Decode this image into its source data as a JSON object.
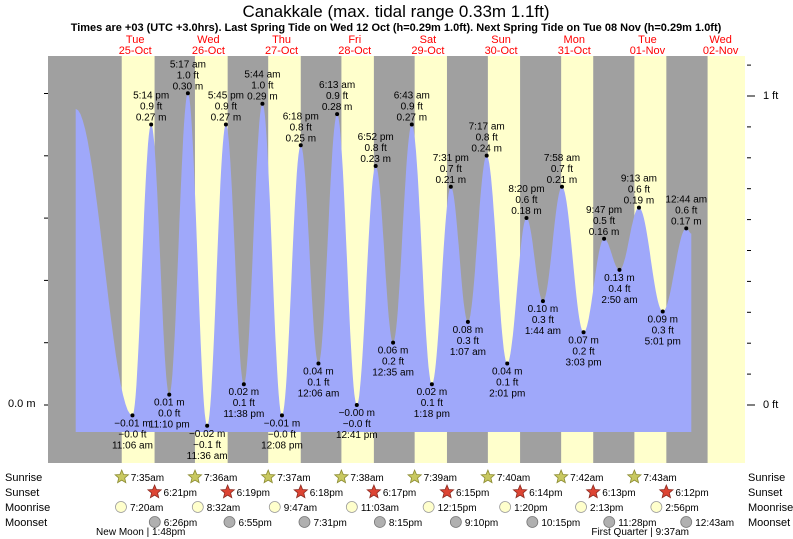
{
  "title": "Canakkale (max. tidal range 0.33m 1.1ft)",
  "subtitle": "Times are +03 (UTC +3.0hrs). Last Spring Tide on Wed 12 Oct (h=0.29m 1.0ft). Next Spring Tide on Tue 08 Nov (h=0.29m 1.0ft)",
  "colors": {
    "tide": "#9fa8fa",
    "day": "#ffffcc",
    "night": "#a0a0a0",
    "dayName": "#ff0000",
    "sun": "#b8b858",
    "sunset": "#dd4433",
    "moonrise": "#ffffcc",
    "moonset": "#b0b0b0"
  },
  "chart_data": {
    "type": "area",
    "title": "Canakkale (max. tidal range 0.33m 1.1ft)",
    "y_axis_left": {
      "tick_label": "0.0 m",
      "value_m": 0.0
    },
    "y_axis_right": {
      "tick_labels": [
        "1 ft",
        "0 ft"
      ],
      "values_ft": [
        1,
        0
      ]
    },
    "ylim_m": [
      -0.045,
      0.333
    ],
    "days": [
      {
        "name": "Tue",
        "date": "25-Oct"
      },
      {
        "name": "Wed",
        "date": "26-Oct"
      },
      {
        "name": "Thu",
        "date": "27-Oct"
      },
      {
        "name": "Fri",
        "date": "28-Oct"
      },
      {
        "name": "Sat",
        "date": "29-Oct"
      },
      {
        "name": "Sun",
        "date": "30-Oct"
      },
      {
        "name": "Mon",
        "date": "31-Oct"
      },
      {
        "name": "Tue",
        "date": "01-Nov"
      },
      {
        "name": "Wed",
        "date": "02-Nov"
      }
    ],
    "daylight_hours": [
      [
        7.58,
        18.35
      ],
      [
        31.6,
        42.32
      ],
      [
        55.62,
        66.3
      ],
      [
        79.63,
        90.28
      ],
      [
        103.65,
        114.25
      ],
      [
        127.67,
        138.23
      ],
      [
        151.7,
        162.22
      ],
      [
        175.72,
        186.2
      ],
      [
        199.73,
        212.0
      ]
    ],
    "tides": [
      {
        "t": -7.5,
        "h": 0.285,
        "label": false
      },
      {
        "t": 11.1,
        "h": -0.01,
        "m": "−0.01 m",
        "ft": "−0.0 ft",
        "time": "11:06 am",
        "type": "low"
      },
      {
        "t": 17.23,
        "h": 0.27,
        "m": "0.27 m",
        "ft": "0.9 ft",
        "time": "5:14 pm",
        "type": "high"
      },
      {
        "t": 23.17,
        "h": 0.01,
        "m": "0.01 m",
        "ft": "0.0 ft",
        "time": "11:10 pm",
        "type": "low"
      },
      {
        "t": 29.28,
        "h": 0.3,
        "m": "0.30 m",
        "ft": "1.0 ft",
        "time": "5:17 am",
        "type": "high"
      },
      {
        "t": 35.6,
        "h": -0.02,
        "m": "−0.02 m",
        "ft": "−0.1 ft",
        "time": "11:36 am",
        "type": "low"
      },
      {
        "t": 41.75,
        "h": 0.27,
        "m": "0.27 m",
        "ft": "0.9 ft",
        "time": "5:45 pm",
        "type": "high"
      },
      {
        "t": 47.63,
        "h": 0.02,
        "m": "0.02 m",
        "ft": "0.1 ft",
        "time": "11:38 pm",
        "type": "low"
      },
      {
        "t": 53.73,
        "h": 0.29,
        "m": "0.29 m",
        "ft": "1.0 ft",
        "time": "5:44 am",
        "type": "high"
      },
      {
        "t": 60.13,
        "h": -0.01,
        "m": "−0.01 m",
        "ft": "−0.0 ft",
        "time": "12:08 pm",
        "type": "low"
      },
      {
        "t": 66.3,
        "h": 0.25,
        "m": "0.25 m",
        "ft": "0.8 ft",
        "time": "6:18 pm",
        "type": "high"
      },
      {
        "t": 72.1,
        "h": 0.04,
        "m": "0.04 m",
        "ft": "0.1 ft",
        "time": "12:06 am",
        "type": "low"
      },
      {
        "t": 78.22,
        "h": 0.28,
        "m": "0.28 m",
        "ft": "0.9 ft",
        "time": "6:13 am",
        "type": "high"
      },
      {
        "t": 84.68,
        "h": -0.0,
        "m": "−0.00 m",
        "ft": "−0.0 ft",
        "time": "12:41 pm",
        "type": "low"
      },
      {
        "t": 90.87,
        "h": 0.23,
        "m": "0.23 m",
        "ft": "0.8 ft",
        "time": "6:52 pm",
        "type": "high"
      },
      {
        "t": 96.58,
        "h": 0.06,
        "m": "0.06 m",
        "ft": "0.2 ft",
        "time": "12:35 am",
        "type": "low"
      },
      {
        "t": 102.72,
        "h": 0.27,
        "m": "0.27 m",
        "ft": "0.9 ft",
        "time": "6:43 am",
        "type": "high"
      },
      {
        "t": 109.3,
        "h": 0.02,
        "m": "0.02 m",
        "ft": "0.1 ft",
        "time": "1:18 pm",
        "type": "low"
      },
      {
        "t": 115.52,
        "h": 0.21,
        "m": "0.21 m",
        "ft": "0.7 ft",
        "time": "7:31 pm",
        "type": "high"
      },
      {
        "t": 121.12,
        "h": 0.08,
        "m": "0.08 m",
        "ft": "0.3 ft",
        "time": "1:07 am",
        "type": "low"
      },
      {
        "t": 127.28,
        "h": 0.24,
        "m": "0.24 m",
        "ft": "0.8 ft",
        "time": "7:17 am",
        "type": "high"
      },
      {
        "t": 134.02,
        "h": 0.04,
        "m": "0.04 m",
        "ft": "0.1 ft",
        "time": "2:01 pm",
        "type": "low"
      },
      {
        "t": 140.33,
        "h": 0.18,
        "m": "0.18 m",
        "ft": "0.6 ft",
        "time": "8:20 pm",
        "type": "high"
      },
      {
        "t": 145.73,
        "h": 0.1,
        "m": "0.10 m",
        "ft": "0.3 ft",
        "time": "1:44 am",
        "type": "low"
      },
      {
        "t": 151.97,
        "h": 0.21,
        "m": "0.21 m",
        "ft": "0.7 ft",
        "time": "7:58 am",
        "type": "high"
      },
      {
        "t": 159.05,
        "h": 0.07,
        "m": "0.07 m",
        "ft": "0.2 ft",
        "time": "3:03 pm",
        "type": "low"
      },
      {
        "t": 165.78,
        "h": 0.16,
        "m": "0.16 m",
        "ft": "0.5 ft",
        "time": "9:47 pm",
        "type": "high"
      },
      {
        "t": 170.83,
        "h": 0.13,
        "m": "0.13 m",
        "ft": "0.4 ft",
        "time": "2:50 am",
        "type": "low"
      },
      {
        "t": 177.22,
        "h": 0.19,
        "m": "0.19 m",
        "ft": "0.6 ft",
        "time": "9:13 am",
        "type": "high"
      },
      {
        "t": 185.02,
        "h": 0.09,
        "m": "0.09 m",
        "ft": "0.3 ft",
        "time": "5:01 pm",
        "type": "low"
      },
      {
        "t": 192.73,
        "h": 0.17,
        "m": "0.17 m",
        "ft": "0.6 ft",
        "time": "12:44 am",
        "type": "high"
      },
      {
        "t": 194.4,
        "h": 0.165,
        "label": false
      }
    ]
  },
  "rows": [
    {
      "label": "Sunrise",
      "kind": "sunrise",
      "events": [
        {
          "t": 7.58,
          "text": "7:35am"
        },
        {
          "t": 31.6,
          "text": "7:36am"
        },
        {
          "t": 55.62,
          "text": "7:37am"
        },
        {
          "t": 79.63,
          "text": "7:38am"
        },
        {
          "t": 103.65,
          "text": "7:39am"
        },
        {
          "t": 127.67,
          "text": "7:40am"
        },
        {
          "t": 151.7,
          "text": "7:42am"
        },
        {
          "t": 175.72,
          "text": "7:43am"
        }
      ]
    },
    {
      "label": "Sunset",
      "kind": "sunset",
      "events": [
        {
          "t": 18.35,
          "text": "6:21pm"
        },
        {
          "t": 42.32,
          "text": "6:19pm"
        },
        {
          "t": 66.3,
          "text": "6:18pm"
        },
        {
          "t": 90.28,
          "text": "6:17pm"
        },
        {
          "t": 114.25,
          "text": "6:15pm"
        },
        {
          "t": 138.23,
          "text": "6:14pm"
        },
        {
          "t": 162.22,
          "text": "6:13pm"
        },
        {
          "t": 186.2,
          "text": "6:12pm"
        }
      ]
    },
    {
      "label": "Moonrise",
      "kind": "moonrise",
      "events": [
        {
          "t": 7.33,
          "text": "7:20am"
        },
        {
          "t": 32.53,
          "text": "8:32am"
        },
        {
          "t": 57.78,
          "text": "9:47am"
        },
        {
          "t": 83.05,
          "text": "11:03am"
        },
        {
          "t": 108.25,
          "text": "12:15pm"
        },
        {
          "t": 133.33,
          "text": "1:20pm"
        },
        {
          "t": 158.22,
          "text": "2:13pm"
        },
        {
          "t": 182.93,
          "text": "2:56pm"
        }
      ]
    },
    {
      "label": "Moonset",
      "kind": "moonset",
      "events": [
        {
          "t": 18.43,
          "text": "6:26pm"
        },
        {
          "t": 42.92,
          "text": "6:55pm"
        },
        {
          "t": 67.52,
          "text": "7:31pm"
        },
        {
          "t": 92.25,
          "text": "8:15pm"
        },
        {
          "t": 117.17,
          "text": "9:10pm"
        },
        {
          "t": 142.25,
          "text": "10:15pm"
        },
        {
          "t": 167.47,
          "text": "11:28pm"
        },
        {
          "t": 192.72,
          "text": "12:43am"
        }
      ]
    }
  ],
  "moon_phases": [
    {
      "t": 13.8,
      "text": "New Moon | 1:48pm"
    },
    {
      "t": 177.62,
      "text": "First Quarter | 9:37am"
    }
  ]
}
